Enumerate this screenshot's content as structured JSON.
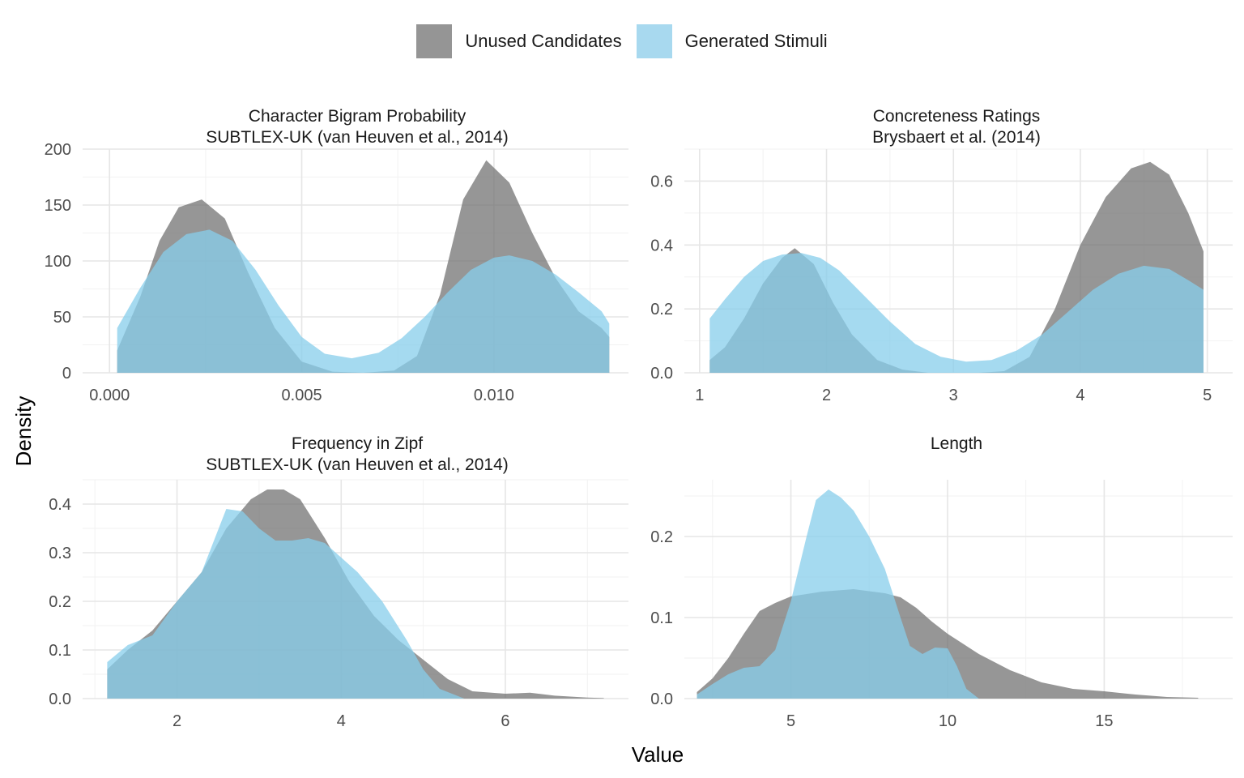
{
  "legend": {
    "position": "top",
    "items": [
      {
        "label": "Unused Candidates",
        "color": "#8c8c8c"
      },
      {
        "label": "Generated Stimuli",
        "color": "#87ceeb"
      }
    ]
  },
  "axes": {
    "xlabel": "Value",
    "ylabel": "Density"
  },
  "chart_data": [
    {
      "type": "area",
      "title": "Character Bigram Probability",
      "subtitle": "SUBTLEX-UK (van Heuven et al., 2014)",
      "xlim": [
        -0.0007,
        0.0135
      ],
      "ylim": [
        0,
        200
      ],
      "xticks": [
        {
          "v": 0.0,
          "label": "0.000"
        },
        {
          "v": 0.005,
          "label": "0.005"
        },
        {
          "v": 0.01,
          "label": "0.010"
        }
      ],
      "yticks": [
        {
          "v": 0,
          "label": "0"
        },
        {
          "v": 50,
          "label": "50"
        },
        {
          "v": 100,
          "label": "100"
        },
        {
          "v": 150,
          "label": "150"
        },
        {
          "v": 200,
          "label": "200"
        }
      ],
      "series": [
        {
          "name": "Unused Candidates",
          "x": [
            0.0002,
            0.0008,
            0.0013,
            0.0018,
            0.0024,
            0.003,
            0.0036,
            0.0043,
            0.005,
            0.0058,
            0.0066,
            0.0074,
            0.008,
            0.0086,
            0.0092,
            0.0098,
            0.0104,
            0.011,
            0.0116,
            0.0122,
            0.0128,
            0.013
          ],
          "y": [
            20,
            68,
            118,
            148,
            155,
            138,
            90,
            40,
            10,
            1,
            0,
            2,
            15,
            70,
            155,
            190,
            170,
            125,
            85,
            55,
            40,
            32
          ]
        },
        {
          "name": "Generated Stimuli",
          "x": [
            0.0002,
            0.0008,
            0.0014,
            0.002,
            0.0026,
            0.0032,
            0.0038,
            0.0044,
            0.005,
            0.0056,
            0.0063,
            0.007,
            0.0076,
            0.0082,
            0.0088,
            0.0094,
            0.01,
            0.0104,
            0.011,
            0.0116,
            0.0122,
            0.0128,
            0.013
          ],
          "y": [
            40,
            76,
            108,
            124,
            128,
            118,
            92,
            60,
            32,
            17,
            13,
            18,
            31,
            50,
            72,
            92,
            103,
            105,
            100,
            88,
            72,
            55,
            44
          ]
        }
      ]
    },
    {
      "type": "area",
      "title": "Concreteness Ratings",
      "subtitle": "Brysbaert et al. (2014)",
      "xlim": [
        0.88,
        5.2
      ],
      "ylim": [
        0,
        0.7
      ],
      "xticks": [
        {
          "v": 1,
          "label": "1"
        },
        {
          "v": 2,
          "label": "2"
        },
        {
          "v": 3,
          "label": "3"
        },
        {
          "v": 4,
          "label": "4"
        },
        {
          "v": 5,
          "label": "5"
        }
      ],
      "yticks": [
        {
          "v": 0,
          "label": "0.0"
        },
        {
          "v": 0.2,
          "label": "0.2"
        },
        {
          "v": 0.4,
          "label": "0.4"
        },
        {
          "v": 0.6,
          "label": "0.6"
        }
      ],
      "series": [
        {
          "name": "Unused Candidates",
          "x": [
            1.08,
            1.2,
            1.35,
            1.5,
            1.65,
            1.75,
            1.9,
            2.05,
            2.2,
            2.4,
            2.6,
            2.8,
            3.0,
            3.2,
            3.4,
            3.6,
            3.8,
            4.0,
            4.2,
            4.4,
            4.55,
            4.7,
            4.85,
            4.97
          ],
          "y": [
            0.04,
            0.08,
            0.17,
            0.28,
            0.36,
            0.39,
            0.34,
            0.22,
            0.12,
            0.04,
            0.01,
            0.0,
            0.0,
            0.0,
            0.005,
            0.05,
            0.2,
            0.4,
            0.55,
            0.64,
            0.66,
            0.62,
            0.5,
            0.38
          ]
        },
        {
          "name": "Generated Stimuli",
          "x": [
            1.08,
            1.2,
            1.35,
            1.5,
            1.65,
            1.8,
            1.95,
            2.1,
            2.3,
            2.5,
            2.7,
            2.9,
            3.1,
            3.3,
            3.5,
            3.7,
            3.9,
            4.1,
            4.3,
            4.5,
            4.7,
            4.85,
            4.97
          ],
          "y": [
            0.17,
            0.23,
            0.3,
            0.35,
            0.37,
            0.375,
            0.36,
            0.32,
            0.24,
            0.16,
            0.09,
            0.05,
            0.035,
            0.04,
            0.07,
            0.12,
            0.19,
            0.26,
            0.31,
            0.335,
            0.325,
            0.29,
            0.26
          ]
        }
      ]
    },
    {
      "type": "area",
      "title": "Frequency in Zipf",
      "subtitle": "SUBTLEX-UK (van Heuven et al., 2014)",
      "xlim": [
        0.85,
        7.5
      ],
      "ylim": [
        0,
        0.45
      ],
      "xticks": [
        {
          "v": 2,
          "label": "2"
        },
        {
          "v": 4,
          "label": "4"
        },
        {
          "v": 6,
          "label": "6"
        }
      ],
      "yticks": [
        {
          "v": 0,
          "label": "0.0"
        },
        {
          "v": 0.1,
          "label": "0.1"
        },
        {
          "v": 0.2,
          "label": "0.2"
        },
        {
          "v": 0.3,
          "label": "0.3"
        },
        {
          "v": 0.4,
          "label": "0.4"
        }
      ],
      "series": [
        {
          "name": "Unused Candidates",
          "x": [
            1.15,
            1.4,
            1.7,
            2.0,
            2.3,
            2.6,
            2.9,
            3.1,
            3.3,
            3.5,
            3.8,
            4.1,
            4.4,
            4.7,
            5.0,
            5.3,
            5.6,
            6.0,
            6.3,
            6.6,
            7.0,
            7.2
          ],
          "y": [
            0.06,
            0.1,
            0.14,
            0.2,
            0.26,
            0.35,
            0.41,
            0.43,
            0.43,
            0.41,
            0.33,
            0.24,
            0.17,
            0.12,
            0.08,
            0.04,
            0.015,
            0.01,
            0.012,
            0.006,
            0.002,
            0.001
          ]
        },
        {
          "name": "Generated Stimuli",
          "x": [
            1.15,
            1.4,
            1.7,
            2.0,
            2.3,
            2.6,
            2.8,
            3.0,
            3.2,
            3.4,
            3.6,
            3.8,
            4.0,
            4.2,
            4.5,
            4.8,
            5.0,
            5.2,
            5.5
          ],
          "y": [
            0.075,
            0.11,
            0.13,
            0.2,
            0.26,
            0.39,
            0.385,
            0.35,
            0.325,
            0.325,
            0.33,
            0.32,
            0.29,
            0.26,
            0.2,
            0.12,
            0.06,
            0.02,
            0.0
          ]
        }
      ]
    },
    {
      "type": "area",
      "title": "Length",
      "subtitle": "",
      "xlim": [
        1.6,
        19.1
      ],
      "ylim": [
        0,
        0.27
      ],
      "xticks": [
        {
          "v": 5,
          "label": "5"
        },
        {
          "v": 10,
          "label": "10"
        },
        {
          "v": 15,
          "label": "15"
        }
      ],
      "yticks": [
        {
          "v": 0,
          "label": "0.0"
        },
        {
          "v": 0.1,
          "label": "0.1"
        },
        {
          "v": 0.2,
          "label": "0.2"
        }
      ],
      "series": [
        {
          "name": "Unused Candidates",
          "x": [
            2,
            2.5,
            3,
            3.5,
            4,
            4.5,
            5,
            6,
            7,
            8,
            8.5,
            9,
            9.5,
            10,
            11,
            12,
            13,
            14,
            15,
            16,
            17,
            18
          ],
          "y": [
            0.008,
            0.025,
            0.05,
            0.08,
            0.108,
            0.118,
            0.126,
            0.132,
            0.135,
            0.13,
            0.125,
            0.112,
            0.095,
            0.08,
            0.055,
            0.035,
            0.02,
            0.012,
            0.009,
            0.005,
            0.002,
            0.001
          ]
        },
        {
          "name": "Generated Stimuli",
          "x": [
            2,
            2.5,
            3,
            3.5,
            4,
            4.5,
            5,
            5.5,
            5.8,
            6.2,
            6.6,
            7,
            7.5,
            8,
            8.5,
            8.8,
            9.2,
            9.6,
            10,
            10.3,
            10.6,
            11
          ],
          "y": [
            0.005,
            0.018,
            0.03,
            0.038,
            0.04,
            0.06,
            0.12,
            0.2,
            0.245,
            0.258,
            0.248,
            0.232,
            0.2,
            0.16,
            0.1,
            0.065,
            0.055,
            0.063,
            0.062,
            0.04,
            0.012,
            0.0
          ]
        }
      ]
    }
  ]
}
